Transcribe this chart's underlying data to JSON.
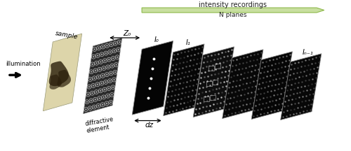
{
  "background_color": "#ffffff",
  "illumination_label": "illumination",
  "sample_label": "sample",
  "diffractive_label": "diffractive\nelement",
  "z0_label": "Z₀",
  "dz_label": "dz",
  "intensity_recordings_label": "intensity recordings",
  "n_planes_label": "N planes",
  "plane_labels": [
    "I₀",
    "I₁",
    "",
    "",
    "",
    "Iₙ₋₁"
  ],
  "fig_width": 5.0,
  "fig_height": 2.16,
  "dpi": 100,
  "arrow_green": "#8db84a",
  "arrow_green_light": "#c8dfa0"
}
